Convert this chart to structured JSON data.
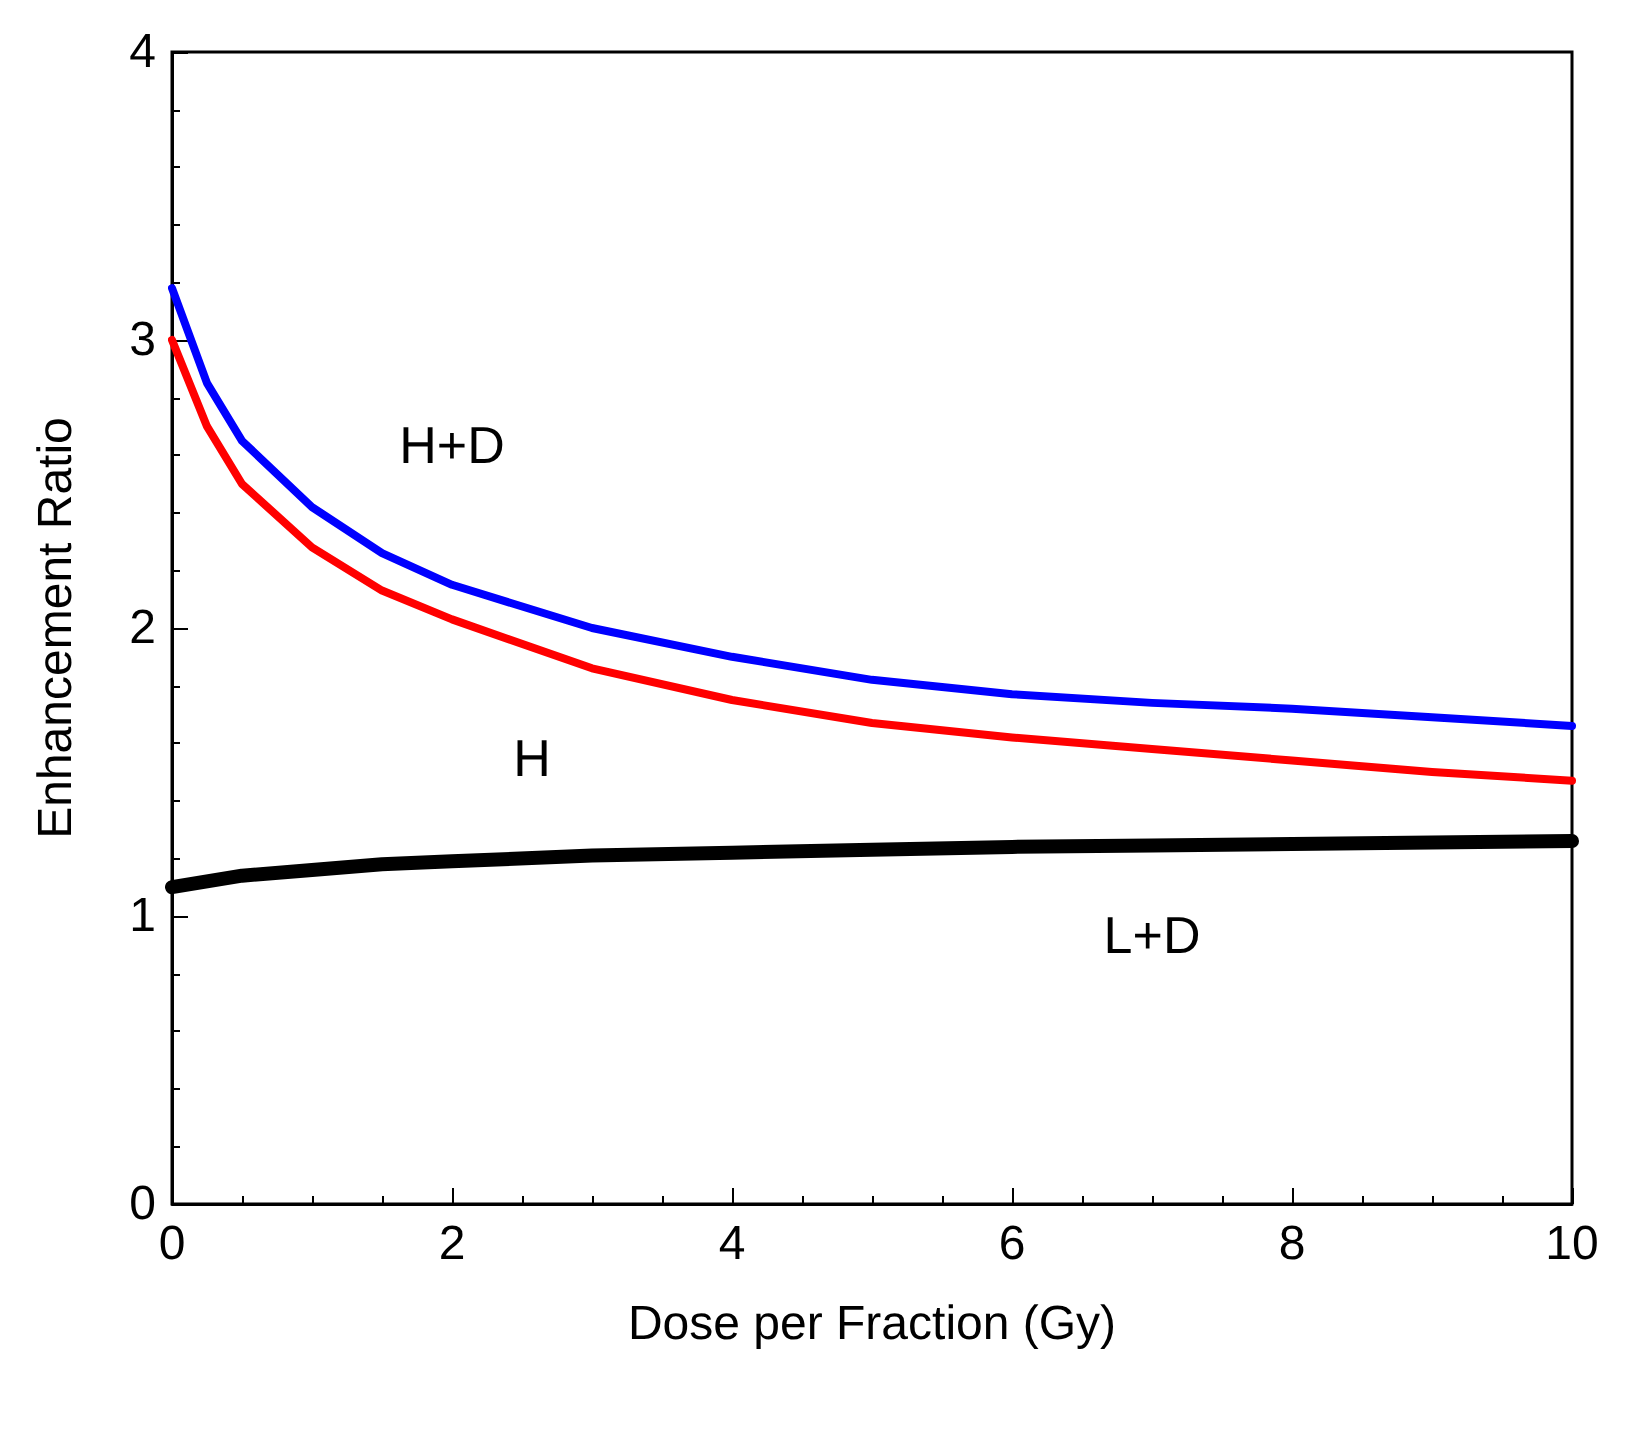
{
  "chart_data": {
    "type": "line",
    "xlabel": "Dose per Fraction (Gy)",
    "ylabel": "Enhancement Ratio",
    "x": [
      0,
      0.25,
      0.5,
      1,
      1.5,
      2,
      3,
      4,
      5,
      6,
      7,
      8,
      9,
      10
    ],
    "series": [
      {
        "name": "H+D",
        "color": "#0000ff",
        "values": [
          3.18,
          2.85,
          2.65,
          2.42,
          2.26,
          2.15,
          2.0,
          1.9,
          1.82,
          1.77,
          1.74,
          1.72,
          1.69,
          1.66
        ]
      },
      {
        "name": "H",
        "color": "#ff0000",
        "values": [
          3.0,
          2.7,
          2.5,
          2.28,
          2.13,
          2.03,
          1.86,
          1.75,
          1.67,
          1.62,
          1.58,
          1.54,
          1.5,
          1.47
        ]
      },
      {
        "name": "L+D",
        "color": "#000000",
        "values": [
          1.1,
          1.12,
          1.14,
          1.16,
          1.18,
          1.19,
          1.21,
          1.22,
          1.23,
          1.24,
          1.245,
          1.25,
          1.255,
          1.26
        ]
      }
    ],
    "xlim": [
      0,
      10
    ],
    "xticks": [
      0,
      2,
      4,
      6,
      8,
      10
    ],
    "ylim": [
      0,
      4
    ],
    "yticks": [
      0,
      1,
      2,
      3,
      4
    ],
    "grid": false,
    "marker": "none",
    "line_style": "solid"
  }
}
